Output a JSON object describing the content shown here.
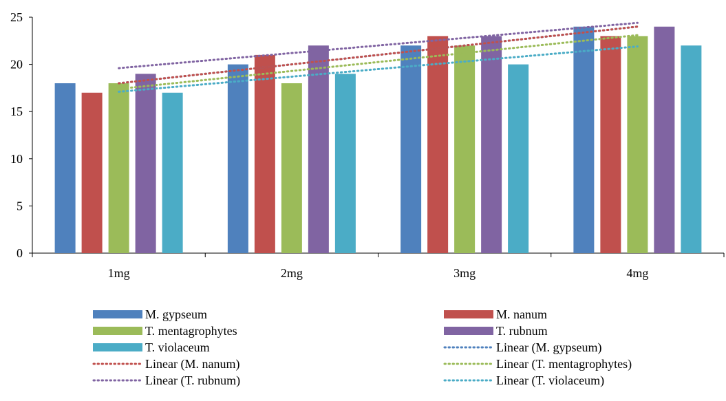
{
  "chart_data": {
    "type": "bar",
    "categories": [
      "1mg",
      "2mg",
      "3mg",
      "4mg"
    ],
    "ylim": [
      0,
      25
    ],
    "yticks": [
      0,
      5,
      10,
      15,
      20,
      25
    ],
    "grid": false,
    "legend_position": "bottom",
    "series": [
      {
        "name": "M. gypseum",
        "values": [
          18,
          20,
          22,
          24
        ],
        "color": "#4F81BD"
      },
      {
        "name": "M. nanum",
        "values": [
          17,
          21,
          23,
          23
        ],
        "color": "#C0504D"
      },
      {
        "name": "T. mentagrophytes",
        "values": [
          18,
          18,
          22,
          23
        ],
        "color": "#9BBB59"
      },
      {
        "name": "T. rubnum",
        "values": [
          19,
          22,
          23,
          24
        ],
        "color": "#8064A2"
      },
      {
        "name": "T. violaceum",
        "values": [
          17,
          19,
          20,
          22
        ],
        "color": "#4BACC6"
      }
    ],
    "trendlines": [
      {
        "name": "Linear (M. gypseum)",
        "series": "M. gypseum",
        "color": "#4F81BD"
      },
      {
        "name": "Linear (M. nanum)",
        "series": "M. nanum",
        "color": "#C0504D"
      },
      {
        "name": "Linear (T. mentagrophytes)",
        "series": "T. mentagrophytes",
        "color": "#9BBB59"
      },
      {
        "name": "Linear (T. rubnum)",
        "series": "T. rubnum",
        "color": "#8064A2"
      },
      {
        "name": "Linear (T. violaceum)",
        "series": "T. violaceum",
        "color": "#4BACC6"
      }
    ]
  }
}
